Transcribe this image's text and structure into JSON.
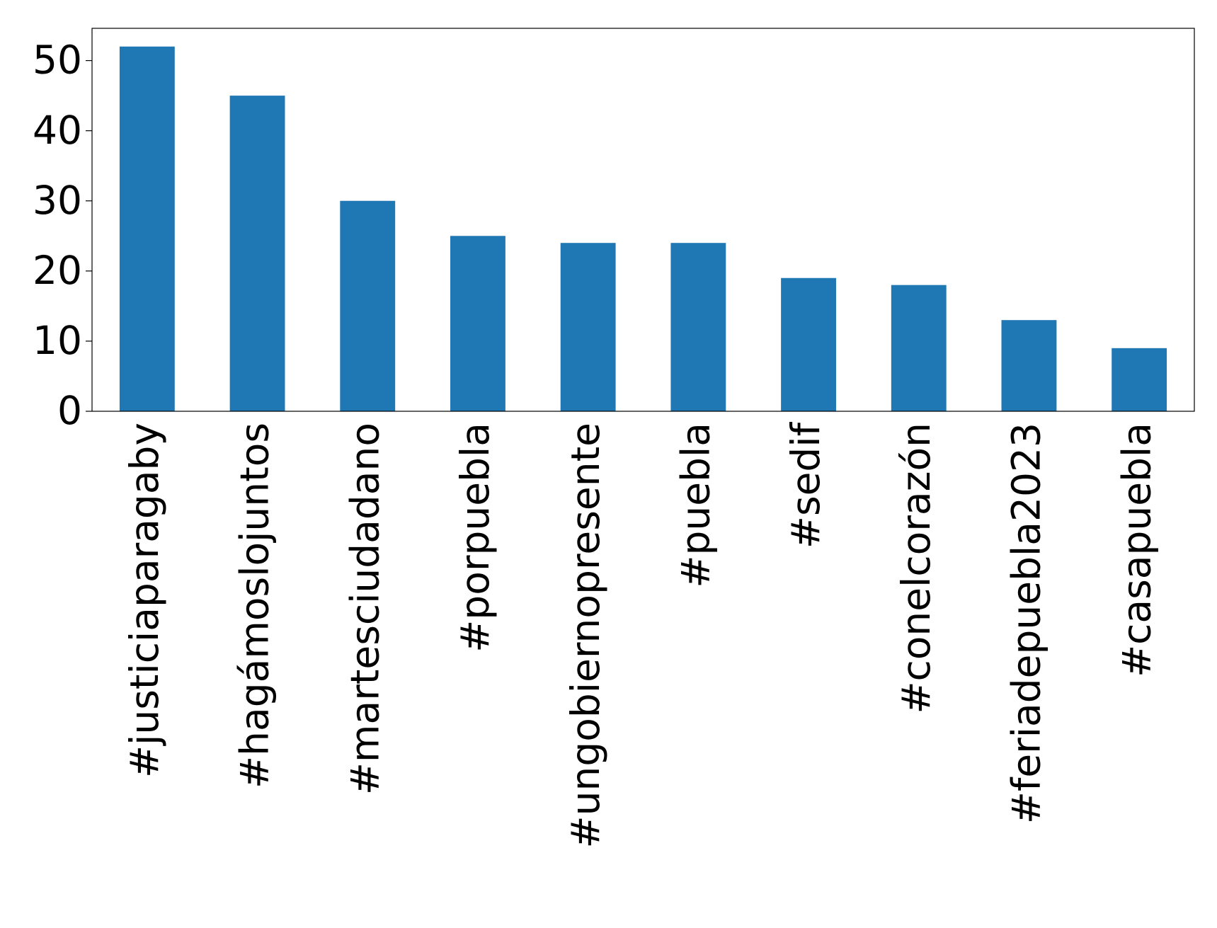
{
  "chart_data": {
    "type": "bar",
    "categories": [
      "#justiciaparagaby",
      "#hagámoslojuntos",
      "#martesciudadano",
      "#porpuebla",
      "#ungobiernopresente",
      "#puebla",
      "#sedif",
      "#conelcorazón",
      "#feriadepuebla2023",
      "#casapuebla"
    ],
    "values": [
      52,
      45,
      30,
      25,
      24,
      24,
      19,
      18,
      13,
      9
    ],
    "color": "#1f77b4",
    "ylim": [
      0,
      54.6
    ],
    "yticks": [
      0,
      10,
      20,
      30,
      40,
      50
    ],
    "grid": false
  }
}
